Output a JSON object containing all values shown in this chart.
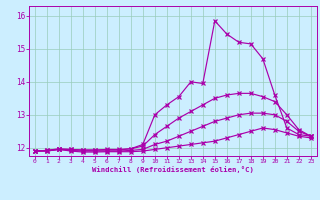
{
  "xlabel": "Windchill (Refroidissement éolien,°C)",
  "bg_color": "#cceeff",
  "line_color": "#aa00aa",
  "grid_color": "#99ccbb",
  "xlim": [
    -0.5,
    23.5
  ],
  "ylim": [
    11.75,
    16.3
  ],
  "xticks": [
    0,
    1,
    2,
    3,
    4,
    5,
    6,
    7,
    8,
    9,
    10,
    11,
    12,
    13,
    14,
    15,
    16,
    17,
    18,
    19,
    20,
    21,
    22,
    23
  ],
  "yticks": [
    12,
    13,
    14,
    15,
    16
  ],
  "line1_x": [
    0,
    1,
    2,
    3,
    4,
    5,
    6,
    7,
    8,
    9,
    10,
    11,
    12,
    13,
    14,
    15,
    16,
    17,
    18,
    19,
    20,
    21,
    22,
    23
  ],
  "line1_y": [
    11.9,
    11.9,
    11.95,
    11.9,
    11.87,
    11.87,
    11.88,
    11.88,
    11.88,
    11.9,
    11.95,
    12.0,
    12.05,
    12.1,
    12.15,
    12.2,
    12.3,
    12.4,
    12.5,
    12.6,
    12.55,
    12.45,
    12.35,
    12.3
  ],
  "line2_x": [
    0,
    1,
    2,
    3,
    4,
    5,
    6,
    7,
    8,
    9,
    10,
    11,
    12,
    13,
    14,
    15,
    16,
    17,
    18,
    19,
    20,
    21,
    22,
    23
  ],
  "line2_y": [
    11.9,
    11.9,
    11.95,
    11.92,
    11.9,
    11.9,
    11.9,
    11.9,
    11.92,
    11.95,
    12.1,
    12.2,
    12.35,
    12.5,
    12.65,
    12.8,
    12.9,
    13.0,
    13.05,
    13.05,
    13.0,
    12.8,
    12.5,
    12.35
  ],
  "line3_x": [
    0,
    1,
    2,
    3,
    4,
    5,
    6,
    7,
    8,
    9,
    10,
    11,
    12,
    13,
    14,
    15,
    16,
    17,
    18,
    19,
    20,
    21,
    22,
    23
  ],
  "line3_y": [
    11.9,
    11.92,
    11.95,
    11.95,
    11.93,
    11.93,
    11.93,
    11.93,
    11.97,
    12.05,
    12.4,
    12.65,
    12.9,
    13.1,
    13.3,
    13.5,
    13.6,
    13.65,
    13.65,
    13.55,
    13.4,
    13.0,
    12.55,
    12.35
  ],
  "line4_x": [
    0,
    1,
    2,
    3,
    4,
    5,
    6,
    7,
    8,
    9,
    10,
    11,
    12,
    13,
    14,
    15,
    16,
    17,
    18,
    19,
    20,
    21,
    22,
    23
  ],
  "line4_y": [
    11.9,
    11.92,
    11.97,
    11.95,
    11.93,
    11.93,
    11.95,
    11.95,
    11.97,
    12.1,
    13.0,
    13.3,
    13.55,
    14.0,
    13.95,
    15.85,
    15.45,
    15.2,
    15.15,
    14.7,
    13.6,
    12.6,
    12.4,
    12.35
  ]
}
